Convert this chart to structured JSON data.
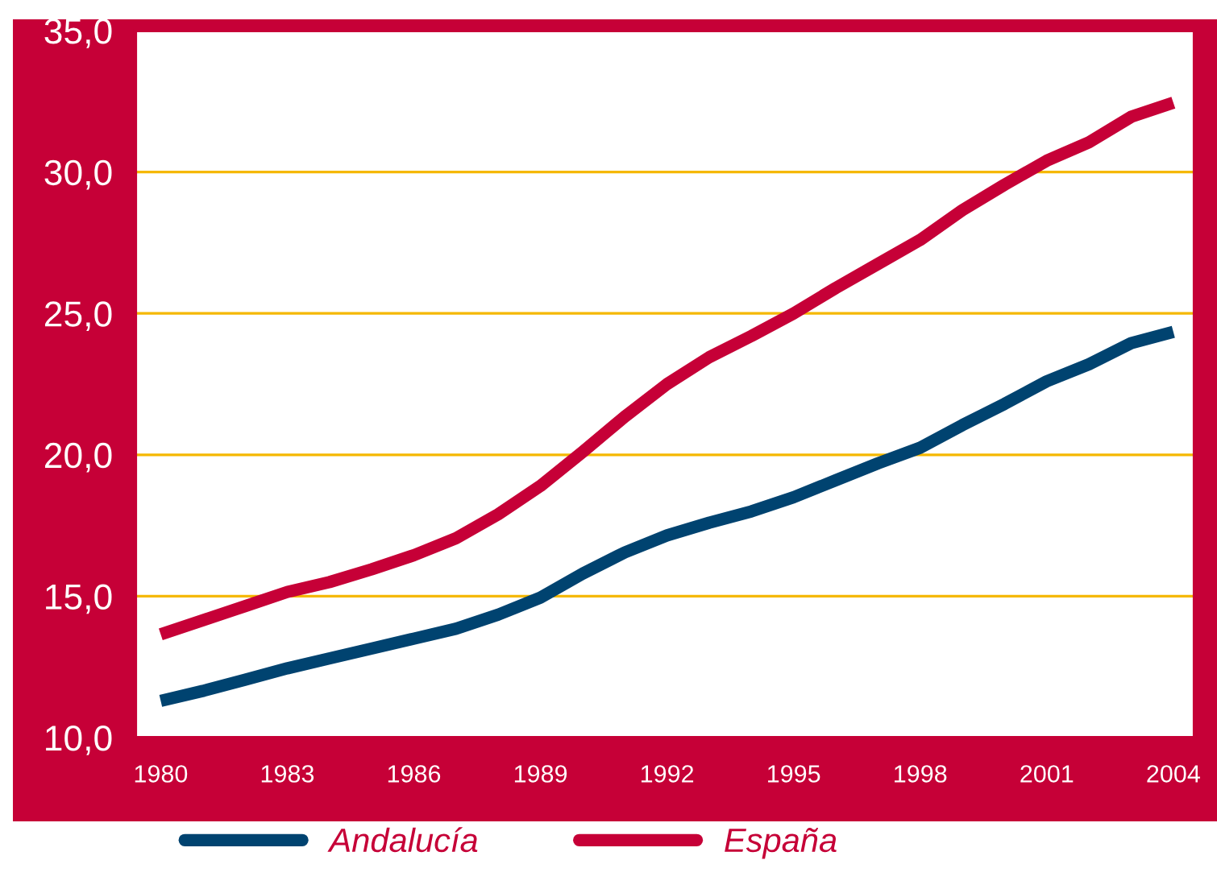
{
  "chart_data": {
    "type": "line",
    "x": [
      1980,
      1981,
      1982,
      1983,
      1984,
      1985,
      1986,
      1987,
      1988,
      1989,
      1990,
      1991,
      1992,
      1993,
      1994,
      1995,
      1996,
      1997,
      1998,
      1999,
      2000,
      2001,
      2002,
      2003,
      2004
    ],
    "series": [
      {
        "name": "Andalucía",
        "color": "#004370",
        "values": [
          11.3,
          11.65,
          12.05,
          12.45,
          12.8,
          13.15,
          13.5,
          13.85,
          14.35,
          14.95,
          15.8,
          16.55,
          17.15,
          17.6,
          18.0,
          18.5,
          19.1,
          19.7,
          20.25,
          21.05,
          21.8,
          22.6,
          23.2,
          23.95,
          24.35
        ]
      },
      {
        "name": "España",
        "color": "#c60037",
        "values": [
          13.65,
          14.15,
          14.65,
          15.15,
          15.5,
          15.95,
          16.45,
          17.05,
          17.9,
          18.9,
          20.1,
          21.35,
          22.5,
          23.45,
          24.2,
          25.0,
          25.9,
          26.75,
          27.6,
          28.65,
          29.55,
          30.4,
          31.05,
          31.95,
          32.45
        ]
      }
    ],
    "xlim": [
      1979.4,
      2004.5
    ],
    "xticks": [
      1980,
      1983,
      1986,
      1989,
      1992,
      1995,
      1998,
      2001,
      2004
    ],
    "ylim": [
      10,
      35
    ],
    "yticks": [
      {
        "value": 10,
        "label": "10,0"
      },
      {
        "value": 15,
        "label": "15,0"
      },
      {
        "value": 20,
        "label": "20,0"
      },
      {
        "value": 25,
        "label": "25,0"
      },
      {
        "value": 30,
        "label": "30,0"
      },
      {
        "value": 35,
        "label": "35,0"
      }
    ],
    "grid": "y",
    "legend": "bottom",
    "marker": "none",
    "line_style": "solid"
  }
}
